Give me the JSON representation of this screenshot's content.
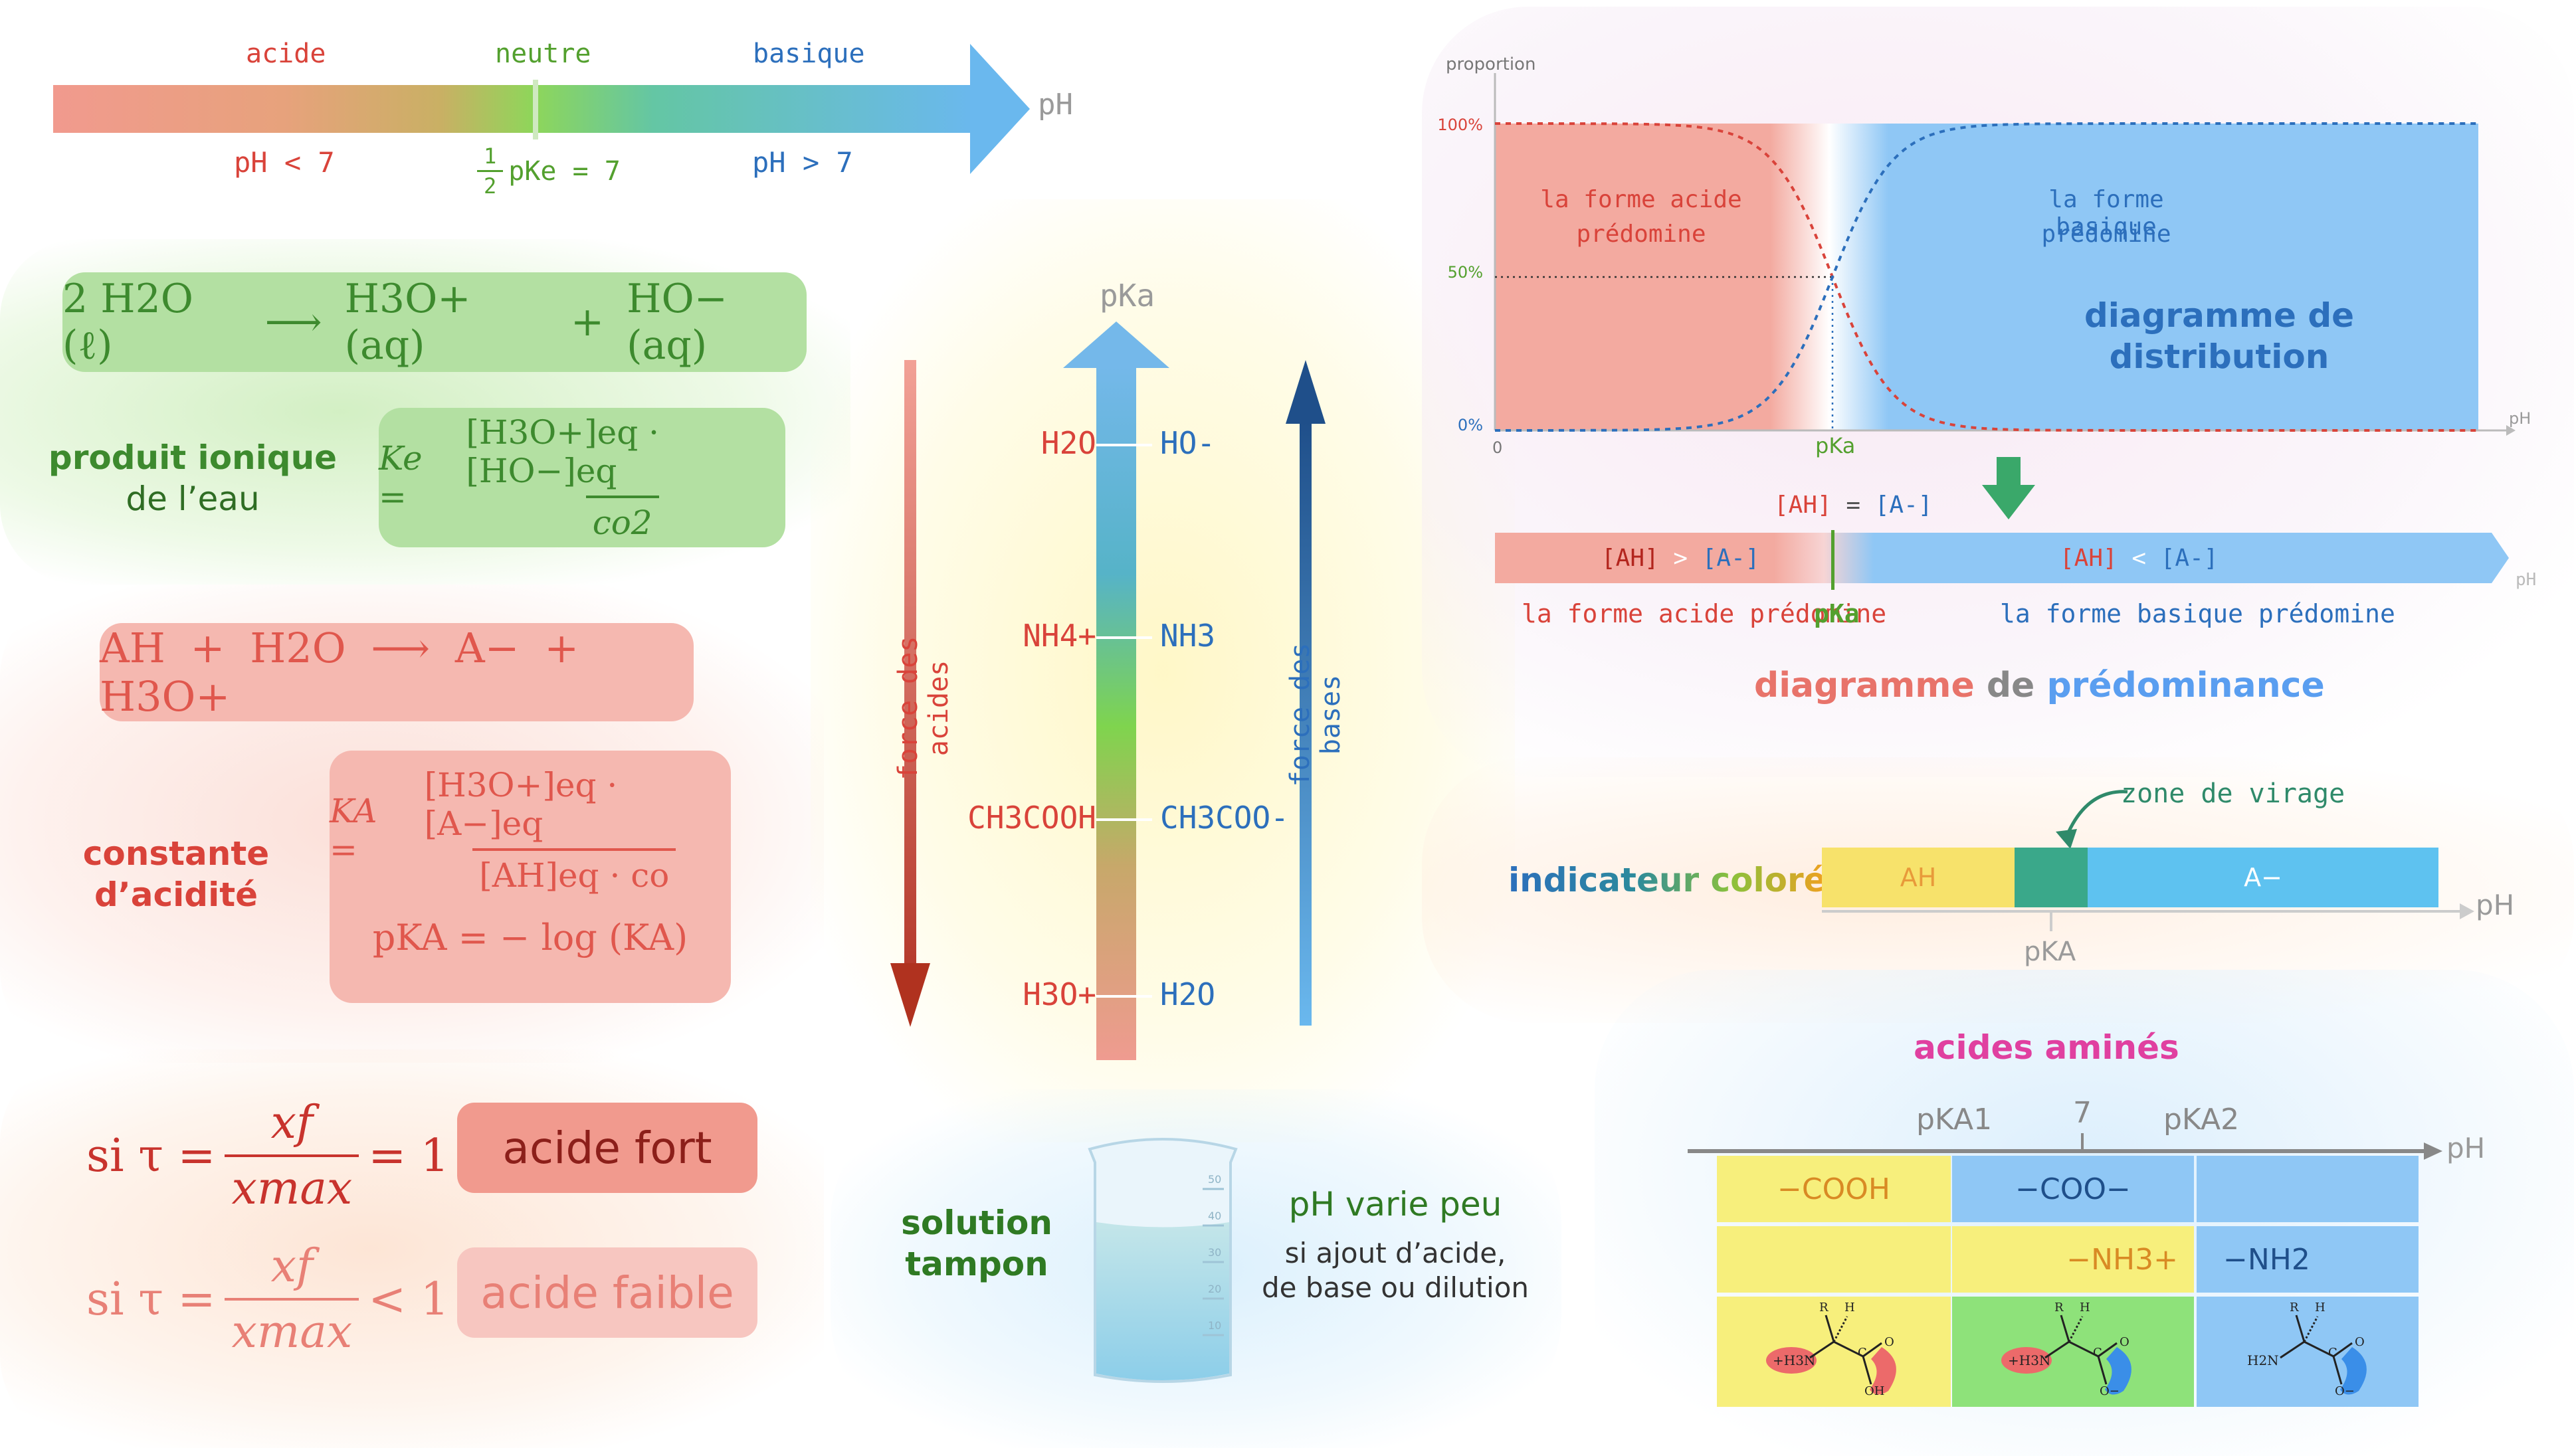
{
  "ph_scale": {
    "acid_label": "acide",
    "neutral_label": "neutre",
    "basic_label": "basique",
    "axis_label": "pH",
    "acid_condition": "pH < 7",
    "neutral_frac_num": "1",
    "neutral_frac_den": "2",
    "neutral_tail": "pKe = 7",
    "basic_condition": "pH > 7",
    "colors": {
      "acid": "#f19a8e",
      "neutral": "#8ed65a",
      "basic": "#6ab8ee"
    }
  },
  "water": {
    "equation_lhs": "2 H2O (ℓ)",
    "equation_arrow": "⟶",
    "equation_p1": "H3O+ (aq)",
    "equation_plus": "+",
    "equation_p2": "HO− (aq)",
    "title_bold": "produit ionique",
    "title_rest": "de l’eau",
    "ke_lhs": "Ke =",
    "ke_num": "[H3O+]eq · [HO−]eq",
    "ke_den": "co2"
  },
  "acid_constant": {
    "equation": "AH + H2O ⟶ A− + H3O+",
    "title_line1": "constante",
    "title_line2": "d’acidité",
    "ka_lhs": "KA =",
    "ka_num": "[H3O+]eq · [A−]eq",
    "ka_den": "[AH]eq · co",
    "pka": "pKA = − log (KA)"
  },
  "strength": {
    "row1_lhs": "si τ =",
    "row1_num": "xf",
    "row1_den": "xmax",
    "row1_rhs": "= 1",
    "row1_badge": "acide fort",
    "row2_lhs": "si τ =",
    "row2_num": "xf",
    "row2_den": "xmax",
    "row2_rhs": "< 1",
    "row2_badge": "acide faible"
  },
  "pka_scale": {
    "axis_label": "pKa",
    "acids_label": "force des acides",
    "bases_label": "force des bases",
    "pairs": [
      {
        "acid": "H2O",
        "base": "HO-"
      },
      {
        "acid": "NH4+",
        "base": "NH3"
      },
      {
        "acid": "CH3COOH",
        "base": "CH3COO-"
      },
      {
        "acid": "H3O+",
        "base": "H2O"
      }
    ]
  },
  "buffer": {
    "title_line1": "solution",
    "title_line2": "tampon",
    "desc_main": "pH varie peu",
    "desc_line1": "si ajout d’acide,",
    "desc_line2": "de base ou dilution",
    "graduations": [
      "50",
      "40",
      "30",
      "20",
      "10"
    ]
  },
  "distribution": {
    "y_axis_label": "proportion",
    "y_ticks": [
      "100%",
      "50%",
      "0%"
    ],
    "x_origin": "0",
    "x_axis_label": "pH",
    "pka_label": "pKa",
    "acid_zone_line1": "la forme acide",
    "acid_zone_line2": "prédomine",
    "base_zone_line1": "la forme basique",
    "base_zone_line2": "prédomine",
    "title_line1": "diagramme de",
    "title_line2": "distribution"
  },
  "predominance": {
    "eq_label_left": "[AH]",
    "eq_label_mid": " = ",
    "eq_label_right": "[A-]",
    "left_a": "[AH]",
    "left_op": " > ",
    "left_b": "[A-]",
    "right_a": "[AH]",
    "right_op": " < ",
    "right_b": "[A-]",
    "axis_label": "pH",
    "acid_caption": "la forme acide prédomine",
    "pka_label": "pKa",
    "base_caption": "la forme basique prédomine",
    "title_part1": "diagramme",
    "title_part2": " de ",
    "title_part3": "prédominance"
  },
  "indicator": {
    "title": "indicateur coloré",
    "zone_label": "zone de virage",
    "acid_form": "AH",
    "base_form": "A−",
    "axis_label": "pH",
    "pka_label": "pKA",
    "colors": {
      "acid": "#f7e26b",
      "zone": "#3aa88a",
      "base": "#5ec2f0"
    }
  },
  "amino": {
    "title": "acides aminés",
    "pka1": "pKA1",
    "seven": "7",
    "pka2": "pKA2",
    "axis_label": "pH",
    "row1": [
      "−COOH",
      "−COO−",
      ""
    ],
    "row2": [
      "",
      "−NH3+",
      "−NH2"
    ],
    "mol_labels": {
      "r": "R",
      "h": "H",
      "c": "C",
      "n1": "+H3N",
      "n3": "H2N",
      "o": "O",
      "oh": "OH",
      "om": "O−"
    }
  }
}
